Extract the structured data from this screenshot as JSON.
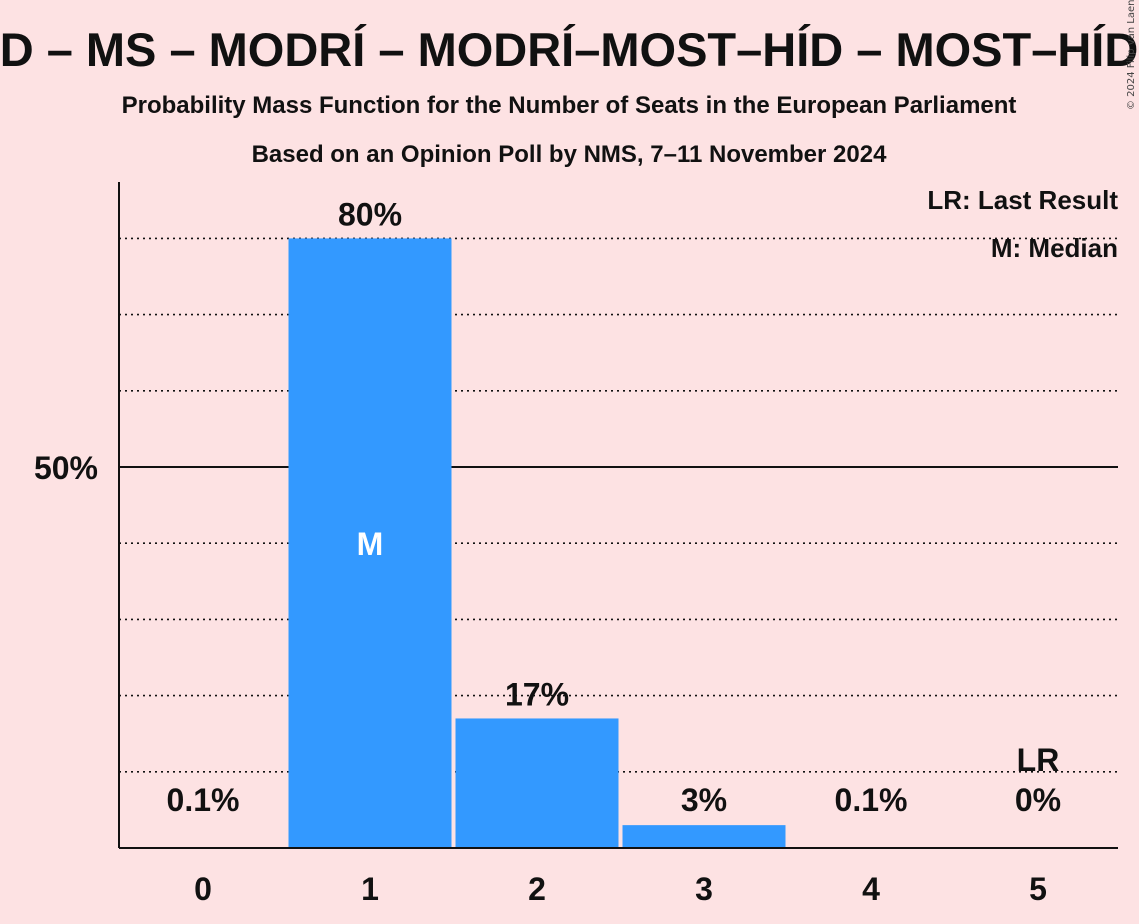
{
  "chart_data": {
    "type": "bar",
    "title": "D – MS – MODRÍ – MODRÍ–MOST–HÍD – MOST–HÍD",
    "subtitle": "Probability Mass Function for the Number of Seats in the European Parliament",
    "subtitle2": "Based on an Opinion Poll by NMS, 7–11 November 2024",
    "copyright": "© 2024 Filip van Laenen",
    "categories": [
      "0",
      "1",
      "2",
      "3",
      "4",
      "5"
    ],
    "values": [
      0.1,
      80,
      17,
      3,
      0.1,
      0
    ],
    "value_labels": [
      "0.1%",
      "80%",
      "17%",
      "3%",
      "0.1%",
      "0%"
    ],
    "ylim": [
      0,
      87
    ],
    "y_ticks": [
      {
        "value": 50,
        "label": "50%"
      }
    ],
    "gridlines_dotted": [
      10,
      20,
      30,
      40,
      60,
      70,
      80
    ],
    "median_index": 1,
    "median_label": "M",
    "last_result_index": 5,
    "last_result_label": "LR",
    "legend": {
      "placement": "top-right",
      "last_result": "LR: Last Result",
      "median": "M: Median"
    },
    "colors": {
      "background": "#fde2e3",
      "bar": "#3399ff",
      "axis": "#111111"
    }
  }
}
